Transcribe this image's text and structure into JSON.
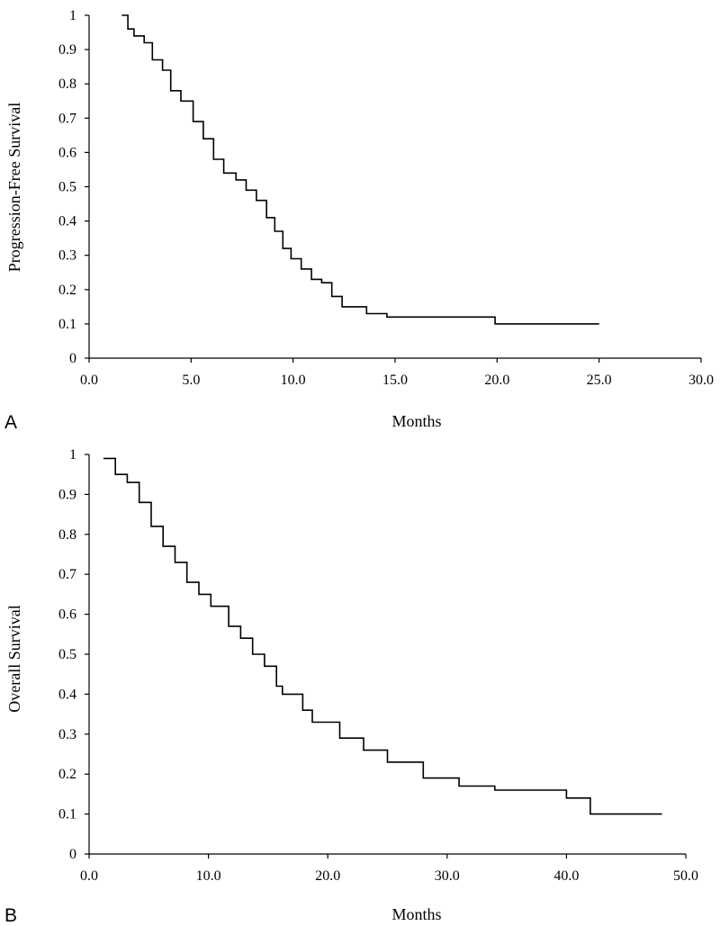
{
  "chart_data": [
    {
      "type": "line",
      "step": true,
      "panel_label": "A",
      "title": "",
      "xlabel": "Months",
      "ylabel": "Progression-Free Survival",
      "xlim": [
        0,
        30
      ],
      "ylim": [
        0,
        1
      ],
      "xticks": [
        "0.0",
        "5.0",
        "10.0",
        "15.0",
        "20.0",
        "25.0",
        "30.0"
      ],
      "yticks": [
        "0",
        "0.1",
        "0.2",
        "0.3",
        "0.4",
        "0.5",
        "0.6",
        "0.7",
        "0.8",
        "0.9",
        "1"
      ],
      "grid": false,
      "series": [
        {
          "name": "Progression-Free Survival",
          "x": [
            1.6,
            1.9,
            2.2,
            2.7,
            3.1,
            3.6,
            4.0,
            4.5,
            5.1,
            5.6,
            6.1,
            6.6,
            7.2,
            7.7,
            8.2,
            8.7,
            9.1,
            9.5,
            9.9,
            10.4,
            10.9,
            11.4,
            11.9,
            12.4,
            13.6,
            14.6,
            19.9,
            25.0
          ],
          "y": [
            1.0,
            0.96,
            0.94,
            0.92,
            0.87,
            0.84,
            0.78,
            0.75,
            0.69,
            0.64,
            0.58,
            0.54,
            0.52,
            0.49,
            0.46,
            0.41,
            0.37,
            0.32,
            0.29,
            0.26,
            0.23,
            0.22,
            0.18,
            0.15,
            0.13,
            0.12,
            0.1,
            0.1
          ]
        }
      ]
    },
    {
      "type": "line",
      "step": true,
      "panel_label": "B",
      "title": "",
      "xlabel": "Months",
      "ylabel": "Overall Survival",
      "xlim": [
        0,
        50
      ],
      "ylim": [
        0,
        1
      ],
      "xticks": [
        "0.0",
        "10.0",
        "20.0",
        "30.0",
        "40.0",
        "50.0"
      ],
      "yticks": [
        "0",
        "0.1",
        "0.2",
        "0.3",
        "0.4",
        "0.5",
        "0.6",
        "0.7",
        "0.8",
        "0.9",
        "1"
      ],
      "grid": false,
      "series": [
        {
          "name": "Overall Survival",
          "x": [
            1.2,
            2.2,
            3.2,
            4.2,
            5.2,
            6.2,
            7.2,
            8.2,
            9.2,
            10.2,
            11.7,
            12.7,
            13.7,
            14.7,
            15.7,
            16.2,
            17.9,
            18.7,
            21.0,
            23.0,
            25.0,
            28.0,
            31.0,
            34.0,
            37.0,
            40.0,
            42.0,
            48.0
          ],
          "y": [
            0.99,
            0.95,
            0.93,
            0.88,
            0.82,
            0.77,
            0.73,
            0.68,
            0.65,
            0.62,
            0.57,
            0.54,
            0.5,
            0.47,
            0.42,
            0.4,
            0.36,
            0.33,
            0.29,
            0.26,
            0.23,
            0.19,
            0.17,
            0.16,
            0.16,
            0.14,
            0.1,
            0.1
          ]
        }
      ]
    }
  ]
}
